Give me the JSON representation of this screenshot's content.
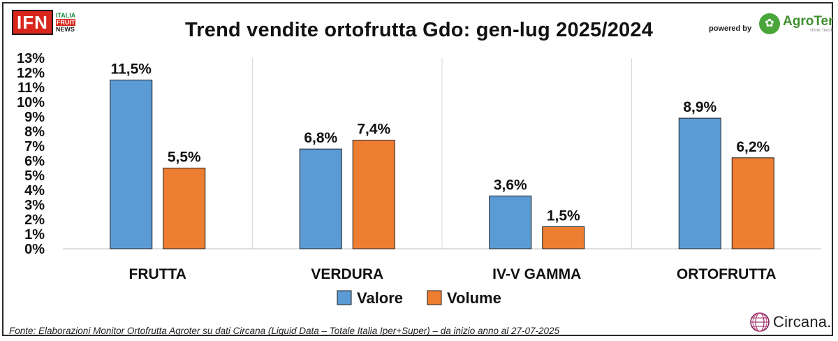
{
  "header": {
    "ifn_logo": {
      "mark": "IFN",
      "lines": [
        "ITALIA",
        "FRUIT",
        "NEWS"
      ]
    },
    "powered_by": "powered by",
    "agroter_logo": {
      "name": "AgroTer",
      "tagline": "think fresh",
      "icon": "tree-icon"
    }
  },
  "footer": {
    "source": "Fonte: Elaborazioni Monitor Ortofrutta Agroter su dati Circana (Liquid Data – Totale Italia Iper+Super) –  da inizio anno al 27-07-2025",
    "circana_logo": {
      "name": "Circana.",
      "icon": "circana-globe-icon"
    }
  },
  "chart_data": {
    "type": "bar",
    "title": "Trend vendite ortofrutta Gdo: gen-lug 2025/2024",
    "categories": [
      "FRUTTA",
      "VERDURA",
      "IV-V GAMMA",
      "ORTOFRUTTA"
    ],
    "series": [
      {
        "name": "Valore",
        "values": [
          11.5,
          6.8,
          3.6,
          8.9
        ],
        "labels": [
          "11,5%",
          "6,8%",
          "3,6%",
          "8,9%"
        ],
        "color": "#5b9bd5"
      },
      {
        "name": "Volume",
        "values": [
          5.5,
          7.4,
          1.5,
          6.2
        ],
        "labels": [
          "5,5%",
          "7,4%",
          "1,5%",
          "6,2%"
        ],
        "color": "#ed7d31"
      }
    ],
    "y_ticks": [
      "0%",
      "1%",
      "2%",
      "3%",
      "4%",
      "5%",
      "6%",
      "7%",
      "8%",
      "9%",
      "10%",
      "11%",
      "12%",
      "13%"
    ],
    "ylim": [
      0,
      13
    ],
    "xlabel": "",
    "ylabel": "",
    "grid": "vertical category separators",
    "legend_position": "bottom-center"
  }
}
